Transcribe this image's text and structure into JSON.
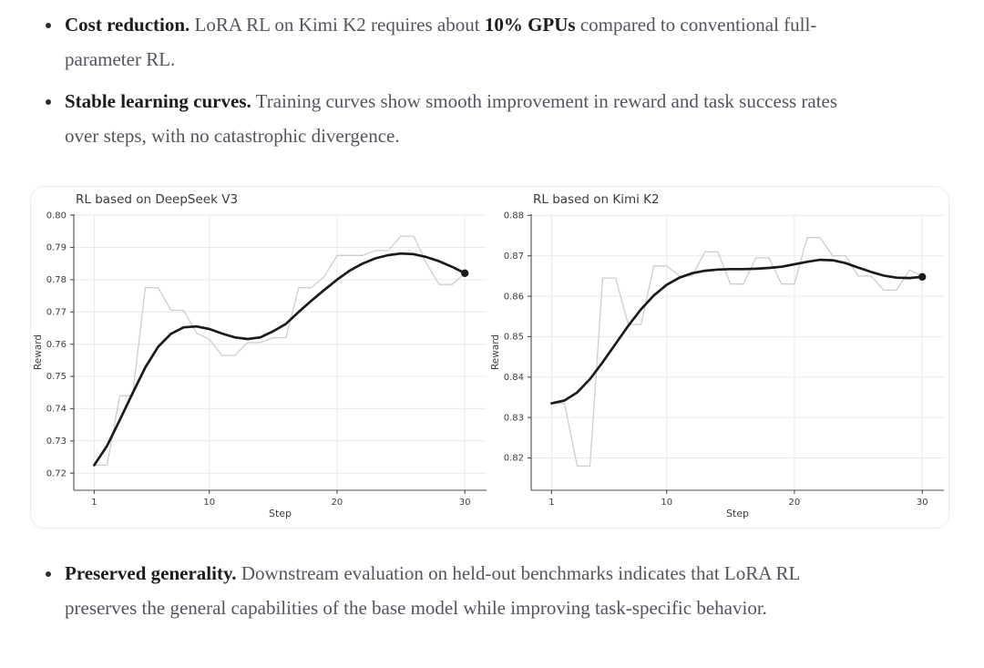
{
  "bullets": [
    {
      "segments": [
        {
          "t": "Cost reduction.",
          "b": true
        },
        {
          "t": " LoRA RL on Kimi K2 requires about ",
          "b": false
        },
        {
          "t": "10% GPUs",
          "b": true
        },
        {
          "t": " compared to conventional full-parameter RL.",
          "b": false
        }
      ]
    },
    {
      "segments": [
        {
          "t": "Stable learning curves.",
          "b": true
        },
        {
          "t": " Training curves show smooth improvement in reward and task success rates over steps, with no catastrophic divergence.",
          "b": false
        }
      ]
    },
    {
      "segments": [
        {
          "t": "Preserved generality.",
          "b": true
        },
        {
          "t": " Downstream evaluation on held-out benchmarks indicates that LoRA RL preserves the general capabilities of the base model while improving task-specific behavior.",
          "b": false
        }
      ]
    }
  ],
  "colors": {
    "body_text": "#54545e",
    "bold_text": "#1c1c21",
    "grid": "#e9e9e9",
    "spine": "#4d4d4d",
    "tick_label": "#3c3c3c",
    "title": "#3a3a3a",
    "raw_line": "#cdcdcd",
    "smooth_line": "#1b1b1b",
    "card_border": "#ededed"
  },
  "chart_data": [
    {
      "type": "line",
      "title": "RL based on DeepSeek V3",
      "xlabel": "Step",
      "ylabel": "Reward",
      "xlim": [
        -0.6,
        31.7
      ],
      "ylim": [
        0.7147,
        0.8003
      ],
      "xticks": [
        1,
        10,
        20,
        30
      ],
      "xtick_labels": [
        "1",
        "10",
        "20",
        "30"
      ],
      "yticks": [
        0.72,
        0.73,
        0.74,
        0.75,
        0.76,
        0.77,
        0.78,
        0.79,
        0.8
      ],
      "ytick_labels": [
        "0.72",
        "0.73",
        "0.74",
        "0.75",
        "0.76",
        "0.77",
        "0.78",
        "0.79",
        "0.80"
      ],
      "grid": true,
      "legend": "none",
      "x": [
        1,
        2,
        3,
        4,
        5,
        6,
        7,
        8,
        9,
        10,
        11,
        12,
        13,
        14,
        15,
        16,
        17,
        18,
        19,
        20,
        21,
        22,
        23,
        24,
        25,
        26,
        27,
        28,
        29,
        30
      ],
      "series": [
        {
          "name": "raw-reward",
          "color": "#cdcdcd",
          "width": 1.3,
          "end_marker": false,
          "values": [
            0.7225,
            0.7225,
            0.744,
            0.744,
            0.7775,
            0.7775,
            0.7705,
            0.7705,
            0.7635,
            0.7615,
            0.7565,
            0.7565,
            0.7605,
            0.7605,
            0.762,
            0.762,
            0.7775,
            0.7775,
            0.781,
            0.7875,
            0.7875,
            0.7875,
            0.789,
            0.789,
            0.7935,
            0.7935,
            0.785,
            0.7785,
            0.7785,
            0.782
          ]
        },
        {
          "name": "smoothed-reward",
          "color": "#1b1b1b",
          "width": 2.7,
          "end_marker": true,
          "values": [
            0.7225,
            0.7285,
            0.7365,
            0.7448,
            0.7528,
            0.7592,
            0.7632,
            0.7652,
            0.7655,
            0.7647,
            0.7633,
            0.7621,
            0.7616,
            0.7621,
            0.764,
            0.7663,
            0.77,
            0.7735,
            0.7768,
            0.78,
            0.7828,
            0.785,
            0.7866,
            0.7876,
            0.7881,
            0.7879,
            0.787,
            0.7857,
            0.784,
            0.782
          ]
        }
      ]
    },
    {
      "type": "line",
      "title": "RL based on Kimi K2",
      "xlabel": "Step",
      "ylabel": "Reward",
      "xlim": [
        -0.6,
        31.7
      ],
      "ylim": [
        0.812,
        0.8803
      ],
      "xticks": [
        1,
        10,
        20,
        30
      ],
      "xtick_labels": [
        "1",
        "10",
        "20",
        "30"
      ],
      "yticks": [
        0.82,
        0.83,
        0.84,
        0.85,
        0.86,
        0.87,
        0.88
      ],
      "ytick_labels": [
        "0.82",
        "0.83",
        "0.84",
        "0.85",
        "0.86",
        "0.87",
        "0.88"
      ],
      "grid": true,
      "legend": "none",
      "x": [
        1,
        2,
        3,
        4,
        5,
        6,
        7,
        8,
        9,
        10,
        11,
        12,
        13,
        14,
        15,
        16,
        17,
        18,
        19,
        20,
        21,
        22,
        23,
        24,
        25,
        26,
        27,
        28,
        29,
        30
      ],
      "series": [
        {
          "name": "raw-reward",
          "color": "#cdcdcd",
          "width": 1.3,
          "end_marker": false,
          "values": [
            0.8335,
            0.8335,
            0.818,
            0.818,
            0.8645,
            0.8645,
            0.853,
            0.853,
            0.8675,
            0.8675,
            0.865,
            0.865,
            0.871,
            0.871,
            0.863,
            0.863,
            0.8695,
            0.8695,
            0.863,
            0.863,
            0.8745,
            0.8745,
            0.87,
            0.87,
            0.865,
            0.865,
            0.8615,
            0.8615,
            0.8665,
            0.865
          ]
        },
        {
          "name": "smoothed-reward",
          "color": "#1b1b1b",
          "width": 2.7,
          "end_marker": true,
          "values": [
            0.8335,
            0.8342,
            0.8362,
            0.8395,
            0.8437,
            0.8482,
            0.8527,
            0.8568,
            0.8602,
            0.8628,
            0.8646,
            0.8657,
            0.8663,
            0.8666,
            0.8667,
            0.8667,
            0.8668,
            0.867,
            0.8673,
            0.8679,
            0.8685,
            0.869,
            0.8689,
            0.8682,
            0.8671,
            0.866,
            0.8651,
            0.8646,
            0.8645,
            0.8648
          ]
        }
      ]
    }
  ]
}
